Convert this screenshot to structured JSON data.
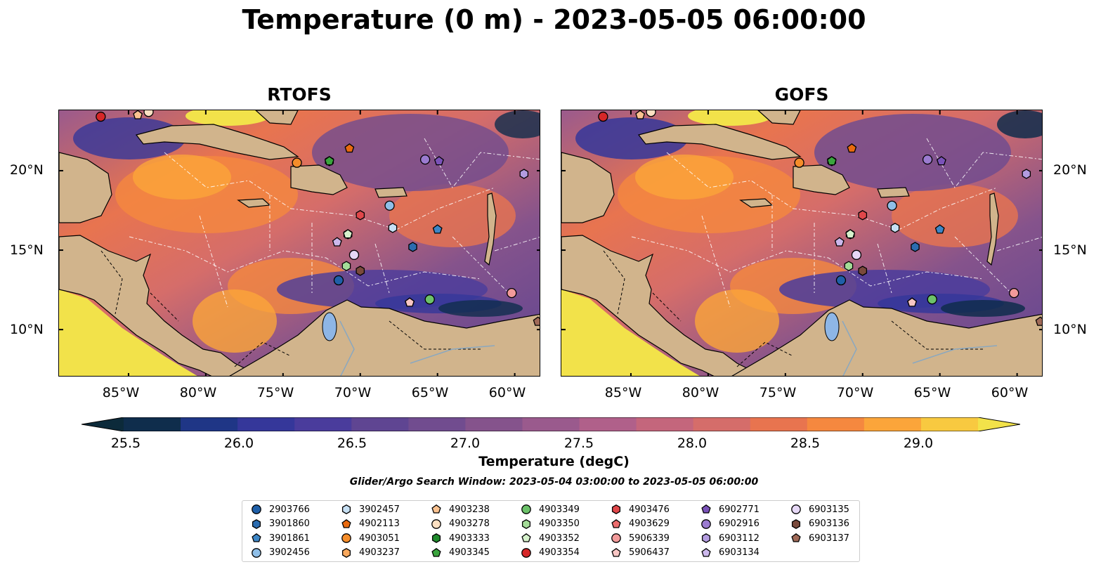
{
  "title": "Temperature (0 m) - 2023-05-05 06:00:00",
  "panels": [
    {
      "title": "RTOFS"
    },
    {
      "title": "GOFS"
    }
  ],
  "map_extent": {
    "lon_min": -89.5,
    "lon_max": -58.3,
    "lat_min": 7.0,
    "lat_max": 23.8
  },
  "lat_ticks": [
    {
      "value": 10,
      "label": "10°N"
    },
    {
      "value": 15,
      "label": "15°N"
    },
    {
      "value": 20,
      "label": "20°N"
    }
  ],
  "lon_ticks": [
    {
      "value": -85,
      "label": "85°W"
    },
    {
      "value": -80,
      "label": "80°W"
    },
    {
      "value": -75,
      "label": "75°W"
    },
    {
      "value": -70,
      "label": "70°W"
    },
    {
      "value": -65,
      "label": "65°W"
    },
    {
      "value": -60,
      "label": "60°W"
    }
  ],
  "colorbar": {
    "label": "Temperature (degC)",
    "min": 25.25,
    "max": 29.5,
    "extend": "both",
    "ticks": [
      "25.5",
      "26.0",
      "26.5",
      "27.0",
      "27.5",
      "28.0",
      "28.5",
      "29.0"
    ],
    "colors": [
      "#0c2a3a",
      "#0f2d4c",
      "#1f3686",
      "#35379a",
      "#4a3c9c",
      "#5f4592",
      "#714c8f",
      "#85538c",
      "#9a5a8d",
      "#b0608a",
      "#c4667c",
      "#d56d6a",
      "#e8744f",
      "#f5883f",
      "#fba53a",
      "#f8c940",
      "#f2e24a"
    ]
  },
  "search_window": "Glider/Argo Search Window: 2023-05-04 03:00:00 to 2023-05-05 06:00:00",
  "legend": [
    {
      "id": "2903766",
      "marker": "circle",
      "color": "#1f5fa8"
    },
    {
      "id": "3901860",
      "marker": "hexagon",
      "color": "#2b6cb0"
    },
    {
      "id": "3901861",
      "marker": "pentagon",
      "color": "#3d86c6"
    },
    {
      "id": "3902456",
      "marker": "circle",
      "color": "#8fbfe8"
    },
    {
      "id": "3902457",
      "marker": "hexagon",
      "color": "#c7e0f4"
    },
    {
      "id": "4902113",
      "marker": "pentagon",
      "color": "#e96a0f"
    },
    {
      "id": "4903051",
      "marker": "circle",
      "color": "#f58d2a"
    },
    {
      "id": "4903237",
      "marker": "hexagon",
      "color": "#f9a85c"
    },
    {
      "id": "4903238",
      "marker": "pentagon",
      "color": "#fbc290"
    },
    {
      "id": "4903278",
      "marker": "circle",
      "color": "#fde0c2"
    },
    {
      "id": "4903333",
      "marker": "hexagon",
      "color": "#1f8a2c"
    },
    {
      "id": "4903345",
      "marker": "pentagon",
      "color": "#3aa43e"
    },
    {
      "id": "4903349",
      "marker": "circle",
      "color": "#6cc26a"
    },
    {
      "id": "4903350",
      "marker": "hexagon",
      "color": "#a4dc98"
    },
    {
      "id": "4903352",
      "marker": "pentagon",
      "color": "#d6f2cc"
    },
    {
      "id": "4903354",
      "marker": "circle",
      "color": "#d62728"
    },
    {
      "id": "4903476",
      "marker": "hexagon",
      "color": "#e0474a"
    },
    {
      "id": "4903629",
      "marker": "pentagon",
      "color": "#ec6d6e"
    },
    {
      "id": "5906339",
      "marker": "circle",
      "color": "#f29a9a"
    },
    {
      "id": "5906437",
      "marker": "pentagon",
      "color": "#f8c6c4"
    },
    {
      "id": "6902771",
      "marker": "pentagon",
      "color": "#7a52b8"
    },
    {
      "id": "6902916",
      "marker": "circle",
      "color": "#9b7bd0"
    },
    {
      "id": "6903112",
      "marker": "hexagon",
      "color": "#b39ce0"
    },
    {
      "id": "6903134",
      "marker": "pentagon",
      "color": "#ccb8ec"
    },
    {
      "id": "6903135",
      "marker": "circle",
      "color": "#e6d8f6"
    },
    {
      "id": "6903136",
      "marker": "hexagon",
      "color": "#7a4a3c"
    },
    {
      "id": "6903137",
      "marker": "pentagon",
      "color": "#a06a58"
    }
  ],
  "floats": [
    {
      "id": "2903766",
      "lon": -71.4,
      "lat": 13.1
    },
    {
      "id": "3901860",
      "lon": -66.6,
      "lat": 15.2
    },
    {
      "id": "3901861",
      "lon": -65.0,
      "lat": 16.3
    },
    {
      "id": "3902456",
      "lon": -68.1,
      "lat": 17.8
    },
    {
      "id": "3902457",
      "lon": -67.9,
      "lat": 16.4
    },
    {
      "id": "4902113",
      "lon": -70.7,
      "lat": 21.4
    },
    {
      "id": "4903051",
      "lon": -74.1,
      "lat": 20.5
    },
    {
      "id": "4903237",
      "lon": -70.8,
      "lat": 16.0
    },
    {
      "id": "4903238",
      "lon": -84.4,
      "lat": 23.5
    },
    {
      "id": "4903278",
      "lon": -83.7,
      "lat": 23.7
    },
    {
      "id": "4903333",
      "lon": -72.0,
      "lat": 20.6
    },
    {
      "id": "4903345",
      "lon": -72.0,
      "lat": 20.6
    },
    {
      "id": "4903349",
      "lon": -65.5,
      "lat": 11.9
    },
    {
      "id": "4903350",
      "lon": -70.9,
      "lat": 14.0
    },
    {
      "id": "4903352",
      "lon": -70.8,
      "lat": 16.0
    },
    {
      "id": "4903354",
      "lon": -86.8,
      "lat": 23.4
    },
    {
      "id": "4903476",
      "lon": -70.0,
      "lat": 17.2
    },
    {
      "id": "4903629",
      "lon": -66.8,
      "lat": 11.7
    },
    {
      "id": "5906339",
      "lon": -60.2,
      "lat": 12.3
    },
    {
      "id": "5906437",
      "lon": -66.8,
      "lat": 11.7
    },
    {
      "id": "6902771",
      "lon": -64.9,
      "lat": 20.6
    },
    {
      "id": "6902916",
      "lon": -65.8,
      "lat": 20.7
    },
    {
      "id": "6903112",
      "lon": -59.4,
      "lat": 19.8
    },
    {
      "id": "6903134",
      "lon": -71.5,
      "lat": 15.5
    },
    {
      "id": "6903135",
      "lon": -70.4,
      "lat": 14.7
    },
    {
      "id": "6903136",
      "lon": -70.0,
      "lat": 13.7
    },
    {
      "id": "6903137",
      "lon": -58.5,
      "lat": 10.5
    }
  ]
}
